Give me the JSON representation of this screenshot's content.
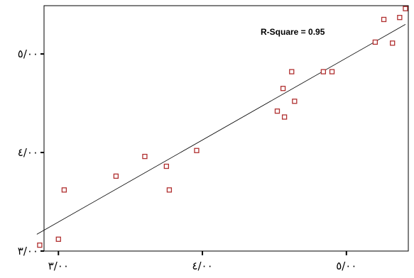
{
  "chart_data": {
    "type": "scatter",
    "title": "",
    "xlabel": "",
    "ylabel": "",
    "xlim": [
      2.9,
      5.43
    ],
    "ylim": [
      3.0,
      5.49
    ],
    "grid": false,
    "x_ticks": [
      {
        "value": 3.0,
        "label": "٣/٠٠"
      },
      {
        "value": 4.0,
        "label": "٤/٠٠"
      },
      {
        "value": 5.0,
        "label": "٥/٠٠"
      }
    ],
    "y_ticks": [
      {
        "value": 3.0,
        "label": "٣/٠٠"
      },
      {
        "value": 4.0,
        "label": "٤/٠٠"
      },
      {
        "value": 5.0,
        "label": "٥/٠٠"
      }
    ],
    "annotation": "R-Square = 0.95",
    "marker_color": "#b03030",
    "line_color": "#000000",
    "points": [
      {
        "x": 2.87,
        "y": 3.06
      },
      {
        "x": 3.0,
        "y": 3.12
      },
      {
        "x": 3.04,
        "y": 3.62
      },
      {
        "x": 3.4,
        "y": 3.76
      },
      {
        "x": 3.6,
        "y": 3.96
      },
      {
        "x": 3.75,
        "y": 3.86
      },
      {
        "x": 3.77,
        "y": 3.62
      },
      {
        "x": 3.96,
        "y": 4.02
      },
      {
        "x": 4.52,
        "y": 4.42
      },
      {
        "x": 4.56,
        "y": 4.65
      },
      {
        "x": 4.57,
        "y": 4.36
      },
      {
        "x": 4.62,
        "y": 4.82
      },
      {
        "x": 4.64,
        "y": 4.52
      },
      {
        "x": 4.84,
        "y": 4.82
      },
      {
        "x": 4.9,
        "y": 4.82
      },
      {
        "x": 5.2,
        "y": 5.12
      },
      {
        "x": 5.26,
        "y": 5.35
      },
      {
        "x": 5.32,
        "y": 5.11
      },
      {
        "x": 5.37,
        "y": 5.37
      },
      {
        "x": 5.41,
        "y": 5.46
      }
    ],
    "fit_line": {
      "x1": 2.85,
      "y1": 3.17,
      "x2": 5.41,
      "y2": 5.3
    }
  }
}
